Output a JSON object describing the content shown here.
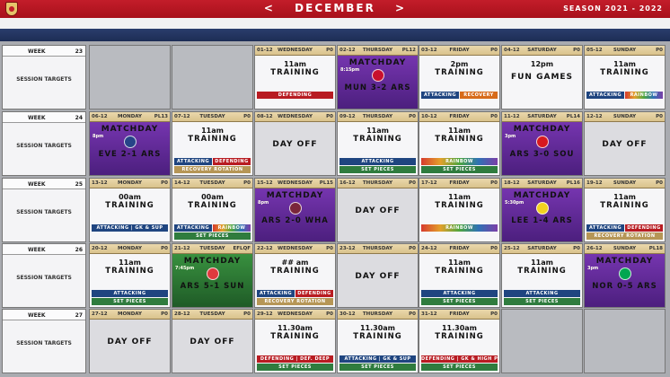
{
  "header": {
    "month_prev": "<",
    "month": "DECEMBER",
    "month_next": ">",
    "season": "SEASON 2021 - 2022"
  },
  "weeks": [
    {
      "label": "WEEK",
      "num": "23",
      "session": "SESSION TARGETS",
      "days": [
        {
          "kind": "empty"
        },
        {
          "kind": "empty"
        },
        {
          "kind": "training",
          "date": "01-12",
          "day": "WEDNESDAY",
          "extra": "P0",
          "time": "11am",
          "label": "TRAINING",
          "tags": [
            [
              {
                "t": "DEFENDING",
                "c": "red"
              }
            ]
          ]
        },
        {
          "kind": "match",
          "color": "purple",
          "date": "02-12",
          "day": "THURSDAY",
          "extra": "PL12",
          "mtime": "8:15pm",
          "title": "MATCHDAY",
          "score": "MUN 3-2 ARS",
          "crest": "#c8102e"
        },
        {
          "kind": "training",
          "date": "03-12",
          "day": "FRIDAY",
          "extra": "P0",
          "time": "2pm",
          "label": "TRAINING",
          "tags": [
            [
              {
                "t": "ATTACKING",
                "c": "blue"
              },
              {
                "t": "RECOVERY",
                "c": "orange"
              }
            ]
          ]
        },
        {
          "kind": "fun",
          "date": "04-12",
          "day": "SATURDAY",
          "extra": "P0",
          "time": "12pm",
          "label": "FUN GAMES",
          "tags": []
        },
        {
          "kind": "training",
          "date": "05-12",
          "day": "SUNDAY",
          "extra": "P0",
          "time": "11am",
          "label": "TRAINING",
          "tags": [
            [
              {
                "t": "ATTACKING",
                "c": "blue"
              },
              {
                "t": "RAINBOW",
                "c": "rainbow"
              }
            ]
          ]
        }
      ]
    },
    {
      "label": "WEEK",
      "num": "24",
      "session": "SESSION TARGETS",
      "days": [
        {
          "kind": "match",
          "color": "purple",
          "date": "06-12",
          "day": "MONDAY",
          "extra": "PL13",
          "mtime": "8pm",
          "title": "MATCHDAY",
          "score": "EVE 2-1 ARS",
          "crest": "#274488"
        },
        {
          "kind": "training",
          "date": "07-12",
          "day": "TUESDAY",
          "extra": "P0",
          "time": "11am",
          "label": "TRAINING",
          "tags": [
            [
              {
                "t": "ATTACKING",
                "c": "blue"
              },
              {
                "t": "DEFENDING",
                "c": "red"
              }
            ],
            [
              {
                "t": "RECOVERY ROTATION",
                "c": "tan"
              }
            ]
          ]
        },
        {
          "kind": "dayoff",
          "date": "08-12",
          "day": "WEDNESDAY",
          "extra": "P0",
          "label": "DAY OFF"
        },
        {
          "kind": "training",
          "date": "09-12",
          "day": "THURSDAY",
          "extra": "P0",
          "time": "11am",
          "label": "TRAINING",
          "tags": [
            [
              {
                "t": "ATTACKING",
                "c": "blue"
              }
            ],
            [
              {
                "t": "SET PIECES",
                "c": "green"
              }
            ]
          ]
        },
        {
          "kind": "training",
          "date": "10-12",
          "day": "FRIDAY",
          "extra": "P0",
          "time": "11am",
          "label": "TRAINING",
          "tags": [
            [
              {
                "t": "RAINBOW",
                "c": "rainbow"
              }
            ],
            [
              {
                "t": "SET PIECES",
                "c": "green"
              }
            ]
          ]
        },
        {
          "kind": "match",
          "color": "purple",
          "date": "11-12",
          "day": "SATURDAY",
          "extra": "PL14",
          "mtime": "3pm",
          "title": "MATCHDAY",
          "score": "ARS 3-0 SOU",
          "crest": "#d71920"
        },
        {
          "kind": "dayoff",
          "date": "12-12",
          "day": "SUNDAY",
          "extra": "P0",
          "label": "DAY OFF"
        }
      ]
    },
    {
      "label": "WEEK",
      "num": "25",
      "session": "SESSION TARGETS",
      "days": [
        {
          "kind": "training",
          "date": "13-12",
          "day": "MONDAY",
          "extra": "P0",
          "time": "00am",
          "label": "TRAINING",
          "tags": [
            [
              {
                "t": "ATTACKING | GK & SUP",
                "c": "blue"
              }
            ]
          ]
        },
        {
          "kind": "training",
          "date": "14-12",
          "day": "TUESDAY",
          "extra": "P0",
          "time": "00am",
          "label": "TRAINING",
          "tags": [
            [
              {
                "t": "ATTACKING",
                "c": "blue"
              },
              {
                "t": "RAINBOW",
                "c": "rainbow"
              }
            ],
            [
              {
                "t": "SET PIECES",
                "c": "green"
              }
            ]
          ]
        },
        {
          "kind": "match",
          "color": "purple",
          "date": "15-12",
          "day": "WEDNESDAY",
          "extra": "PL15",
          "mtime": "8pm",
          "title": "MATCHDAY",
          "score": "ARS 2-0 WHA",
          "crest": "#7a263a"
        },
        {
          "kind": "dayoff",
          "date": "16-12",
          "day": "THURSDAY",
          "extra": "P0",
          "label": "DAY OFF"
        },
        {
          "kind": "training",
          "date": "17-12",
          "day": "FRIDAY",
          "extra": "P0",
          "time": "11am",
          "label": "TRAINING",
          "tags": [
            [
              {
                "t": "RAINBOW",
                "c": "rainbow"
              }
            ]
          ]
        },
        {
          "kind": "match",
          "color": "purple",
          "date": "18-12",
          "day": "SATURDAY",
          "extra": "PL16",
          "mtime": "5:30pm",
          "title": "MATCHDAY",
          "score": "LEE 1-4 ARS",
          "crest": "#f2d21f"
        },
        {
          "kind": "training",
          "date": "19-12",
          "day": "SUNDAY",
          "extra": "P0",
          "time": "11am",
          "label": "TRAINING",
          "tags": [
            [
              {
                "t": "ATTACKING",
                "c": "blue"
              },
              {
                "t": "DEFENDING",
                "c": "red"
              }
            ],
            [
              {
                "t": "RECOVERY ROTATION",
                "c": "tan"
              }
            ]
          ]
        }
      ]
    },
    {
      "label": "WEEK",
      "num": "26",
      "session": "SESSION TARGETS",
      "days": [
        {
          "kind": "training",
          "date": "20-12",
          "day": "MONDAY",
          "extra": "P0",
          "time": "11am",
          "label": "TRAINING",
          "tags": [
            [
              {
                "t": "ATTACKING",
                "c": "blue"
              }
            ],
            [
              {
                "t": "SET PIECES",
                "c": "green"
              }
            ]
          ]
        },
        {
          "kind": "match",
          "color": "green",
          "date": "21-12",
          "day": "TUESDAY",
          "extra": "EFLQF",
          "mtime": "7:45pm",
          "title": "MATCHDAY",
          "score": "ARS 5-1 SUN",
          "crest": "#e03a3e"
        },
        {
          "kind": "training",
          "date": "22-12",
          "day": "WEDNESDAY",
          "extra": "P0",
          "time": "## am",
          "label": "TRAINING",
          "tags": [
            [
              {
                "t": "ATTACKING",
                "c": "blue"
              },
              {
                "t": "DEFENDING",
                "c": "red"
              }
            ],
            [
              {
                "t": "RECOVERY ROTATION",
                "c": "tan"
              }
            ]
          ]
        },
        {
          "kind": "dayoff",
          "date": "23-12",
          "day": "THURSDAY",
          "extra": "P0",
          "label": "DAY OFF"
        },
        {
          "kind": "training",
          "date": "24-12",
          "day": "FRIDAY",
          "extra": "P0",
          "time": "11am",
          "label": "TRAINING",
          "tags": [
            [
              {
                "t": "ATTACKING",
                "c": "blue"
              }
            ],
            [
              {
                "t": "SET PIECES",
                "c": "green"
              }
            ]
          ]
        },
        {
          "kind": "training",
          "date": "25-12",
          "day": "SATURDAY",
          "extra": "P0",
          "time": "11am",
          "label": "TRAINING",
          "tags": [
            [
              {
                "t": "ATTACKING",
                "c": "blue"
              }
            ],
            [
              {
                "t": "SET PIECES",
                "c": "green"
              }
            ]
          ]
        },
        {
          "kind": "match",
          "color": "purple",
          "date": "26-12",
          "day": "SUNDAY",
          "extra": "PL18",
          "mtime": "3pm",
          "title": "MATCHDAY",
          "score": "NOR 0-5 ARS",
          "crest": "#00a650"
        }
      ]
    },
    {
      "label": "WEEK",
      "num": "27",
      "session": "SESSION TARGETS",
      "days": [
        {
          "kind": "dayoff",
          "date": "27-12",
          "day": "MONDAY",
          "extra": "P0",
          "label": "DAY OFF"
        },
        {
          "kind": "dayoff",
          "date": "28-12",
          "day": "TUESDAY",
          "extra": "P0",
          "label": "DAY OFF"
        },
        {
          "kind": "training",
          "date": "29-12",
          "day": "WEDNESDAY",
          "extra": "P0",
          "time": "11.30am",
          "label": "TRAINING",
          "tags": [
            [
              {
                "t": "DEFENDING | DEF. DEEP",
                "c": "red"
              }
            ],
            [
              {
                "t": "SET PIECES",
                "c": "green"
              }
            ]
          ]
        },
        {
          "kind": "training",
          "date": "30-12",
          "day": "THURSDAY",
          "extra": "P0",
          "time": "11.30am",
          "label": "TRAINING",
          "tags": [
            [
              {
                "t": "ATTACKING | GK & SUP",
                "c": "blue"
              }
            ],
            [
              {
                "t": "SET PIECES",
                "c": "green"
              }
            ]
          ]
        },
        {
          "kind": "training",
          "date": "31-12",
          "day": "FRIDAY",
          "extra": "P0",
          "time": "11.30am",
          "label": "TRAINING",
          "tags": [
            [
              {
                "t": "DEFENDING | GK & HIGH PRESS",
                "c": "red"
              }
            ],
            [
              {
                "t": "SET PIECES",
                "c": "green"
              }
            ]
          ]
        },
        {
          "kind": "empty"
        },
        {
          "kind": "empty"
        }
      ]
    }
  ]
}
